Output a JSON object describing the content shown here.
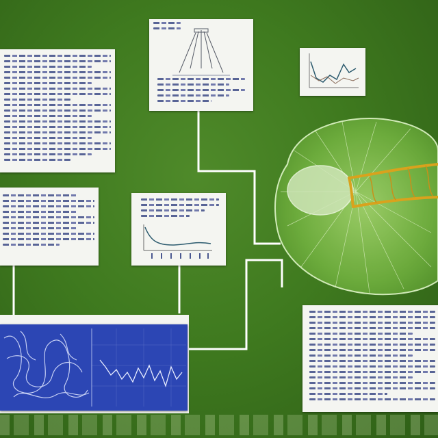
{
  "scene": {
    "palette": {
      "background": "#3f7a1f",
      "connector": "#ffffff",
      "paper": "#f4f5f1",
      "ink": "#3c4a86",
      "blueprint": "#2c46b4",
      "leaf": "#7fb84a",
      "vein": "#d9a21d"
    },
    "elements": [
      "text-card-top-left",
      "text-card-mid-left",
      "diagram-card-top",
      "chart-card-top-right",
      "chart-card-center",
      "blueprint-panel-bottom-left",
      "text-card-bottom-right",
      "leaf-illustration",
      "connector-lines"
    ]
  }
}
